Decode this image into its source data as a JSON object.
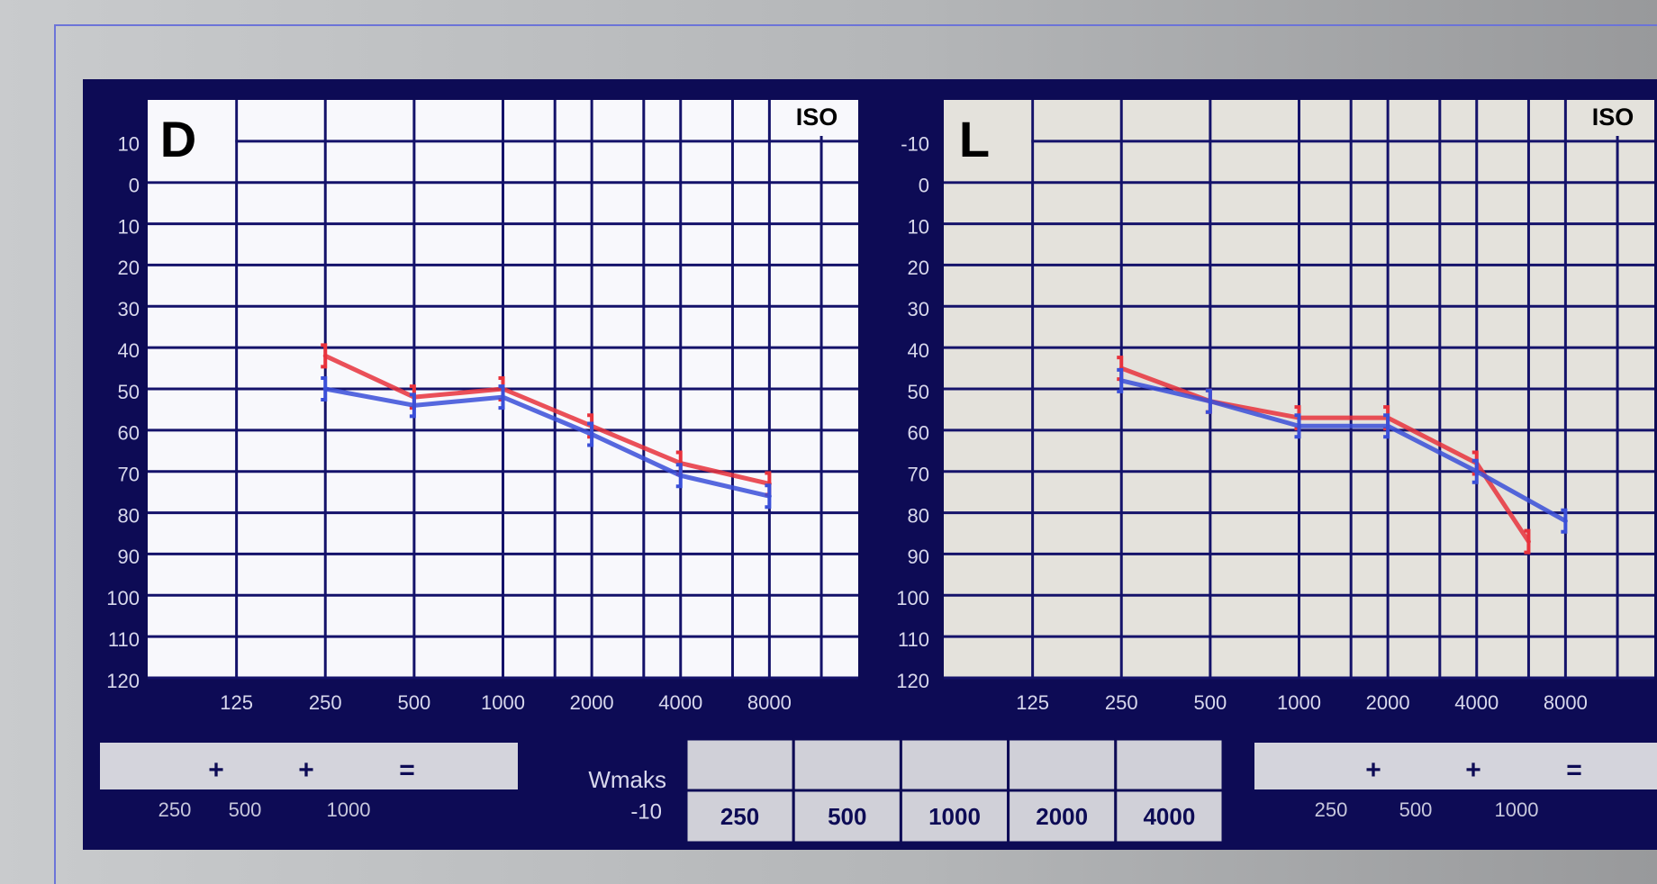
{
  "chart_data": [
    {
      "type": "line",
      "title": "D",
      "annotation": "ISO",
      "xscale": "log",
      "xlim": [
        62.5,
        16000
      ],
      "ylim": [
        -20,
        120
      ],
      "y_reversed": true,
      "grid": true,
      "xticks": [
        125,
        250,
        500,
        1000,
        2000,
        4000,
        8000
      ],
      "xminorticks": [
        1500,
        3000,
        6000,
        12000
      ],
      "yticks": [
        {
          "value": -10,
          "label": "10"
        },
        0,
        10,
        20,
        30,
        40,
        50,
        60,
        70,
        80,
        90,
        100,
        110,
        120
      ],
      "series": [
        {
          "color": "#e8323c",
          "x": [
            250,
            500,
            1000,
            2000,
            4000,
            8000
          ],
          "values": [
            42,
            52,
            50,
            59,
            68,
            73
          ]
        },
        {
          "color": "#3a4fd8",
          "x": [
            250,
            500,
            1000,
            2000,
            4000,
            8000
          ],
          "values": [
            50,
            54,
            52,
            61,
            71,
            76
          ]
        }
      ]
    },
    {
      "type": "line",
      "title": "L",
      "annotation": "ISO",
      "xscale": "log",
      "xlim": [
        62.5,
        16000
      ],
      "ylim": [
        -20,
        120
      ],
      "y_reversed": true,
      "grid": true,
      "xticks": [
        125,
        250,
        500,
        1000,
        2000,
        4000,
        8000
      ],
      "xminorticks": [
        1500,
        3000,
        6000,
        12000
      ],
      "yticks": [
        -10,
        0,
        10,
        20,
        30,
        40,
        50,
        60,
        70,
        80,
        90,
        100,
        110,
        120
      ],
      "series": [
        {
          "color": "#e8323c",
          "x": [
            250,
            500,
            1000,
            2000,
            4000,
            6000
          ],
          "values": [
            45,
            53,
            57,
            57,
            68,
            87
          ]
        },
        {
          "color": "#3a4fd8",
          "x": [
            250,
            500,
            1000,
            2000,
            4000,
            8000
          ],
          "values": [
            48,
            53,
            59,
            59,
            70,
            82
          ]
        }
      ]
    }
  ],
  "form": {
    "left_sum": {
      "symbols": [
        "+",
        "+",
        "="
      ],
      "labels": [
        "250",
        "500",
        "1000"
      ]
    },
    "wmax": {
      "title": "Wmaks",
      "offset": "-10",
      "columns": [
        "250",
        "500",
        "1000",
        "2000",
        "4000"
      ]
    },
    "right_sum": {
      "symbols": [
        "+",
        "+",
        "="
      ],
      "labels": [
        "250",
        "500",
        "1000"
      ]
    }
  }
}
